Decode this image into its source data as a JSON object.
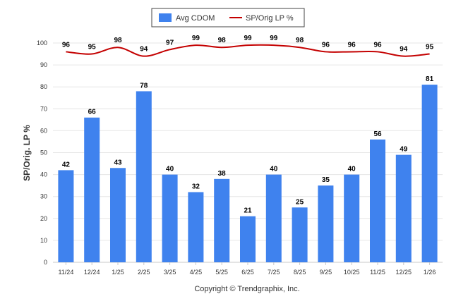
{
  "chart_data": {
    "type": "bar",
    "categories": [
      "11/24",
      "12/24",
      "1/25",
      "2/25",
      "3/25",
      "4/25",
      "5/25",
      "6/25",
      "7/25",
      "8/25",
      "9/25",
      "10/25",
      "11/25",
      "12/25",
      "1/26"
    ],
    "series": [
      {
        "name": "Avg CDOM",
        "type": "bar",
        "color": "#3f82ee",
        "values": [
          42,
          66,
          43,
          78,
          40,
          32,
          38,
          21,
          40,
          25,
          35,
          40,
          56,
          49,
          81
        ]
      },
      {
        "name": "SP/Orig LP %",
        "type": "line",
        "color": "#c40000",
        "values": [
          96,
          95,
          98,
          94,
          97,
          99,
          98,
          99,
          99,
          98,
          96,
          96,
          96,
          94,
          95
        ]
      }
    ],
    "ylabel": "SP/Orig. LP %",
    "ylim": [
      0,
      100
    ],
    "yticks": [
      0,
      10,
      20,
      30,
      40,
      50,
      60,
      70,
      80,
      90,
      100
    ],
    "grid": true,
    "legend_position": "top-center"
  },
  "footer": {
    "copyright": "Copyright © Trendgraphix, Inc."
  }
}
